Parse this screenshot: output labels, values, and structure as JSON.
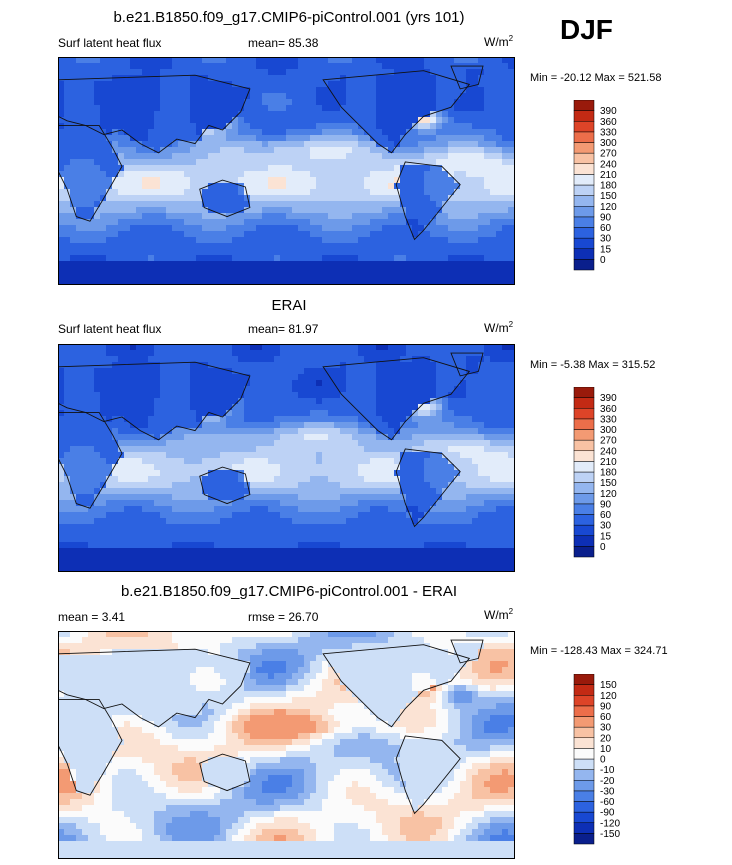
{
  "season": "DJF",
  "panels": [
    {
      "title": "b.e21.B1850.f09_g17.CMIP6-piControl.001 (yrs 101)",
      "left_label": "Surf latent heat flux",
      "center_label": "mean=  85.38",
      "units_base": "W/m",
      "units_sup": "2",
      "minmax": "Min = -20.12 Max = 521.58",
      "kind": "field"
    },
    {
      "title": "ERAI",
      "left_label": "Surf latent heat flux",
      "center_label": "mean=  81.97",
      "units_base": "W/m",
      "units_sup": "2",
      "minmax": "Min =  -5.38 Max = 315.52",
      "kind": "field"
    },
    {
      "title": "b.e21.B1850.f09_g17.CMIP6-piControl.001 - ERAI",
      "left_label": "mean =   3.41",
      "center_label": "rmse =  26.70",
      "units_base": "W/m",
      "units_sup": "2",
      "minmax": "Min = -128.43 Max = 324.71",
      "kind": "diff"
    }
  ],
  "chart_data": [
    {
      "type": "heatmap",
      "title": "b.e21.B1850.f09_g17.CMIP6-piControl.001 (yrs 101)",
      "variable": "Surf latent heat flux",
      "mean": 85.38,
      "min": -20.12,
      "max": 521.58,
      "units": "W/m2",
      "colorbar_levels": [
        0,
        15,
        30,
        60,
        90,
        120,
        150,
        180,
        210,
        240,
        270,
        300,
        330,
        360,
        390
      ],
      "colorbar_colors": [
        "#0a1f8c",
        "#0d2fb5",
        "#1848d2",
        "#2c62e0",
        "#4a7fe6",
        "#6d9ae9",
        "#94b6ef",
        "#bdd2f5",
        "#e2ecfa",
        "#fbe3d4",
        "#f8c2a4",
        "#f39a73",
        "#ec6e4a",
        "#dd4428",
        "#c32a14",
        "#991a0b"
      ]
    },
    {
      "type": "heatmap",
      "title": "ERAI",
      "variable": "Surf latent heat flux",
      "mean": 81.97,
      "min": -5.38,
      "max": 315.52,
      "units": "W/m2",
      "colorbar_levels": [
        0,
        15,
        30,
        60,
        90,
        120,
        150,
        180,
        210,
        240,
        270,
        300,
        330,
        360,
        390
      ],
      "colorbar_colors": [
        "#0a1f8c",
        "#0d2fb5",
        "#1848d2",
        "#2c62e0",
        "#4a7fe6",
        "#6d9ae9",
        "#94b6ef",
        "#bdd2f5",
        "#e2ecfa",
        "#fbe3d4",
        "#f8c2a4",
        "#f39a73",
        "#ec6e4a",
        "#dd4428",
        "#c32a14",
        "#991a0b"
      ]
    },
    {
      "type": "heatmap",
      "title": "b.e21.B1850.f09_g17.CMIP6-piControl.001 - ERAI",
      "mean": 3.41,
      "rmse": 26.7,
      "min": -128.43,
      "max": 324.71,
      "units": "W/m2",
      "colorbar_levels": [
        -150,
        -120,
        -90,
        -60,
        -30,
        -20,
        -10,
        0,
        10,
        20,
        30,
        60,
        90,
        120,
        150
      ],
      "colorbar_colors": [
        "#0a1f8c",
        "#0d2fb5",
        "#1848d2",
        "#2c62e0",
        "#4a7fe6",
        "#6d9ae9",
        "#94b6ef",
        "#cddff7",
        "#fbfbfb",
        "#fbe3d4",
        "#f8c2a4",
        "#f39a73",
        "#ec6e4a",
        "#dd4428",
        "#c32a14",
        "#991a0b"
      ]
    }
  ]
}
